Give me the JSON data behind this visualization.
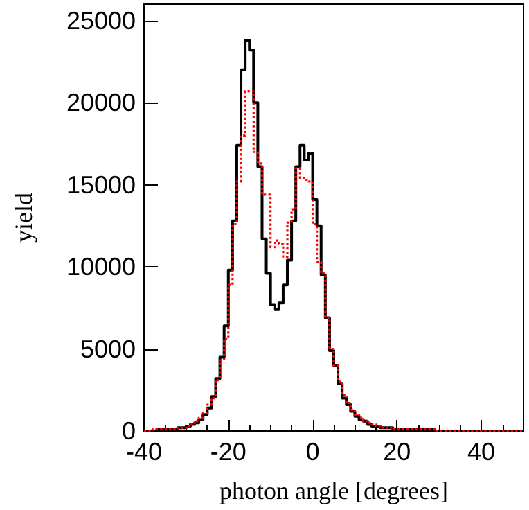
{
  "chart_data": {
    "type": "histogram",
    "xlabel": "photon angle [degrees]",
    "ylabel": "yield",
    "bins": [
      -40,
      -39,
      -38,
      -37,
      -36,
      -35,
      -34,
      -33,
      -32,
      -31,
      -30,
      -29,
      -28,
      -27,
      -26,
      -25,
      -24,
      -23,
      -22,
      -21,
      -20,
      -19,
      -18,
      -17,
      -16,
      -15,
      -14,
      -13,
      -12,
      -11,
      -10,
      -9,
      -8,
      -7,
      -6,
      -5,
      -4,
      -3,
      -2,
      -1,
      0,
      1,
      2,
      3,
      4,
      5,
      6,
      7,
      8,
      9,
      10,
      11,
      12,
      13,
      14,
      15,
      16,
      17,
      18,
      19,
      20,
      21,
      22,
      23,
      24,
      25,
      26,
      27,
      28,
      29,
      30,
      31,
      32,
      33,
      34,
      35,
      36,
      37,
      38,
      39,
      40,
      41,
      42,
      43,
      44,
      45,
      46,
      47,
      48,
      49,
      50
    ],
    "series": [
      {
        "color": "#000000",
        "line_style": "solid",
        "values": [
          0,
          0,
          0,
          100,
          100,
          100,
          100,
          100,
          200,
          200,
          300,
          400,
          500,
          700,
          1000,
          1400,
          2100,
          3200,
          4500,
          6400,
          9800,
          12800,
          17400,
          22000,
          23800,
          23200,
          20000,
          16100,
          11700,
          9600,
          7700,
          7400,
          7800,
          8900,
          10400,
          12800,
          16100,
          17400,
          16500,
          16900,
          14100,
          12500,
          9500,
          6900,
          4900,
          4000,
          2900,
          2000,
          1600,
          1200,
          900,
          700,
          600,
          400,
          300,
          300,
          200,
          200,
          200,
          100,
          100,
          100,
          100,
          100,
          100,
          100,
          100,
          100,
          100,
          0,
          0,
          0,
          0,
          0,
          0,
          0,
          0,
          0,
          0,
          0,
          0,
          0,
          0,
          0,
          0,
          0,
          0,
          0,
          0,
          0
        ]
      },
      {
        "color": "#ff0000",
        "line_style": "dotted",
        "values": [
          0,
          0,
          100,
          100,
          100,
          100,
          100,
          100,
          200,
          200,
          300,
          400,
          600,
          800,
          1100,
          1600,
          2000,
          3100,
          4300,
          5600,
          8900,
          12600,
          15200,
          18000,
          20700,
          20700,
          17000,
          16300,
          14400,
          14400,
          11200,
          11600,
          11400,
          10600,
          12700,
          13500,
          16000,
          15400,
          15300,
          15200,
          12600,
          10300,
          9600,
          6900,
          5000,
          4000,
          3000,
          2200,
          1700,
          1300,
          1000,
          800,
          600,
          500,
          400,
          300,
          200,
          200,
          200,
          100,
          100,
          100,
          100,
          100,
          100,
          100,
          100,
          100,
          100,
          0,
          0,
          0,
          0,
          0,
          0,
          0,
          0,
          0,
          0,
          0,
          0,
          0,
          0,
          0,
          0,
          0,
          0,
          0,
          0,
          0
        ]
      }
    ],
    "xlim": [
      -40,
      50
    ],
    "xticks": [
      -40,
      -20,
      0,
      20,
      40
    ],
    "ylim": [
      0,
      26000
    ],
    "yticks": [
      0,
      5000,
      10000,
      15000,
      20000,
      25000
    ]
  }
}
